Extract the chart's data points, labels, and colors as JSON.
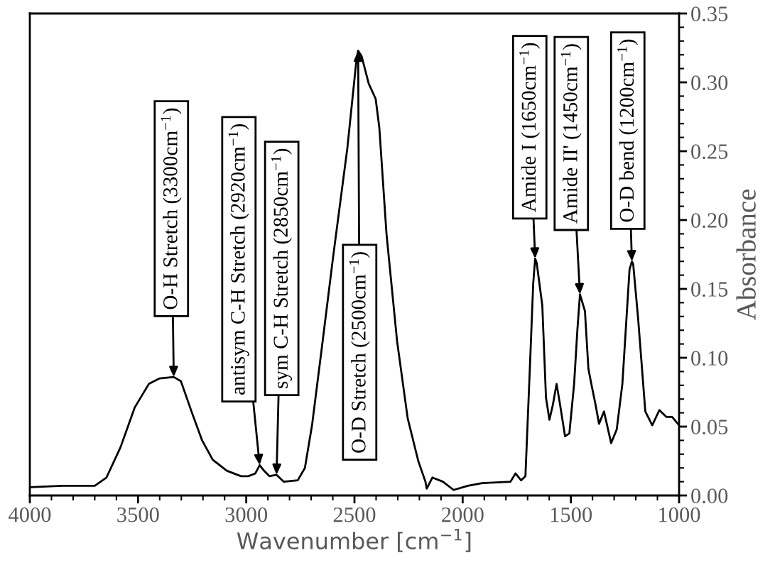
{
  "chart_data": {
    "type": "line",
    "xlabel": "Wavenumber [cm$^{−1}$]",
    "ylabel": "Absorbance",
    "xlim": [
      4000,
      1000
    ],
    "xticks": [
      4000,
      3500,
      3000,
      2500,
      2000,
      1500,
      1000
    ],
    "ylim": [
      0,
      0.35
    ],
    "yticks": [
      {
        "value": 0,
        "label": "0.00"
      },
      {
        "value": 0.05,
        "label": "0.05"
      },
      {
        "value": 0.1,
        "label": "0.10"
      },
      {
        "value": 0.15,
        "label": "0.15"
      },
      {
        "value": 0.2,
        "label": "0.20"
      },
      {
        "value": 0.25,
        "label": "0.25"
      },
      {
        "value": 0.3,
        "label": "0.30"
      },
      {
        "value": 0.35,
        "label": "0.35"
      }
    ],
    "grid": false,
    "legend": false,
    "marker": "none",
    "line_style": "solid",
    "series": [
      {
        "color": "#000000",
        "x": [
          4000,
          3850,
          3700,
          3646,
          3581,
          3515,
          3450,
          3400,
          3335,
          3302,
          3253,
          3204,
          3155,
          3090,
          3024,
          2991,
          2958,
          2938,
          2918,
          2893,
          2860,
          2827,
          2762,
          2729,
          2696,
          2647,
          2598,
          2533,
          2493,
          2483,
          2467,
          2434,
          2402,
          2385,
          2352,
          2303,
          2254,
          2205,
          2172,
          2166,
          2140,
          2091,
          2042,
          1976,
          1910,
          1779,
          1756,
          1730,
          1710,
          1687,
          1674,
          1665,
          1658,
          1632,
          1615,
          1599,
          1583,
          1566,
          1550,
          1527,
          1507,
          1485,
          1470,
          1458,
          1435,
          1419,
          1403,
          1386,
          1370,
          1347,
          1334,
          1314,
          1288,
          1262,
          1229,
          1218,
          1212,
          1189,
          1156,
          1124,
          1091,
          1058,
          1032,
          1000
        ],
        "values": [
          0.006,
          0.007,
          0.007,
          0.013,
          0.035,
          0.064,
          0.081,
          0.085,
          0.086,
          0.083,
          0.061,
          0.04,
          0.026,
          0.018,
          0.014,
          0.014,
          0.016,
          0.022,
          0.018,
          0.014,
          0.015,
          0.01,
          0.011,
          0.02,
          0.051,
          0.112,
          0.174,
          0.252,
          0.313,
          0.323,
          0.319,
          0.299,
          0.288,
          0.267,
          0.19,
          0.112,
          0.056,
          0.025,
          0.01,
          0.005,
          0.013,
          0.01,
          0.004,
          0.007,
          0.009,
          0.01,
          0.016,
          0.011,
          0.014,
          0.102,
          0.154,
          0.172,
          0.169,
          0.138,
          0.071,
          0.055,
          0.066,
          0.081,
          0.066,
          0.043,
          0.045,
          0.081,
          0.12,
          0.146,
          0.134,
          0.092,
          0.079,
          0.066,
          0.052,
          0.061,
          0.052,
          0.038,
          0.048,
          0.081,
          0.164,
          0.17,
          0.168,
          0.128,
          0.061,
          0.051,
          0.062,
          0.057,
          0.057,
          0.051
        ]
      }
    ],
    "annotations": [
      {
        "text": "O-H Stretch (3300cm$^{−1}$)",
        "x": 3335,
        "y": 0.086
      },
      {
        "text": "antisym C-H Stretch (2920cm$^{−1}$)",
        "x": 2938,
        "y": 0.022
      },
      {
        "text": "sym C-H Stretch (2850cm$^{−1}$)",
        "x": 2860,
        "y": 0.015
      },
      {
        "text": "O-D Stretch (2500cm$^{−1}$)",
        "x": 2483,
        "y": 0.323
      },
      {
        "text": "Amide I (1650cm$^{−1}$)",
        "x": 1665,
        "y": 0.172
      },
      {
        "text": "Amide II' (1450cm$^{−1}$)",
        "x": 1458,
        "y": 0.146
      },
      {
        "text": "O-D bend (1200cm$^{−1}$)",
        "x": 1218,
        "y": 0.17
      }
    ]
  }
}
